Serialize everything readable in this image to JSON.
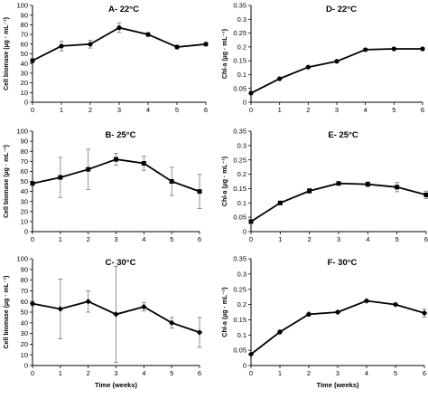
{
  "figure": {
    "x_title": "Time (weeks)"
  },
  "chart_data": [
    {
      "type": "line",
      "title": "A- 22°C",
      "ylabel": "Cell biomase (µg · mL⁻¹)",
      "x": [
        0,
        1,
        2,
        3,
        4,
        5,
        6
      ],
      "xlim": [
        0,
        6
      ],
      "ylim": [
        0,
        100
      ],
      "yticks": [
        "0",
        "10",
        "20",
        "30",
        "40",
        "50",
        "60",
        "70",
        "80",
        "90",
        "100"
      ],
      "xticks": [
        "0",
        "1",
        "2",
        "3",
        "4",
        "5",
        "6"
      ],
      "xlabel": "",
      "marker": "circle",
      "values": [
        43,
        58,
        60,
        77,
        70,
        57,
        60
      ],
      "error": [
        2,
        5,
        4,
        5,
        2,
        2,
        2
      ]
    },
    {
      "type": "line",
      "title": "D- 22°C",
      "ylabel": "Chl-a (µg · mL⁻¹)",
      "x": [
        0,
        1,
        2,
        3,
        4,
        5,
        6
      ],
      "xlim": [
        0,
        6
      ],
      "ylim": [
        0,
        0.35
      ],
      "yticks": [
        "0",
        "0.05",
        "0.1",
        "0.15",
        "0.2",
        "0.25",
        "0.3",
        "0.35"
      ],
      "xticks": [
        "0",
        "1",
        "2",
        "3",
        "4",
        "5",
        "6"
      ],
      "xlabel": "",
      "marker": "circle",
      "values": [
        0.033,
        0.085,
        0.127,
        0.148,
        0.19,
        0.193,
        0.193
      ],
      "error": [
        0.002,
        0.003,
        0.003,
        0.003,
        0.003,
        0.004,
        0.003
      ]
    },
    {
      "type": "line",
      "title": "B- 25°C",
      "ylabel": "Cell biomase (µg · mL⁻¹)",
      "x": [
        0,
        1,
        2,
        3,
        4,
        5,
        6
      ],
      "xlim": [
        0,
        6
      ],
      "ylim": [
        0,
        100
      ],
      "yticks": [
        "0",
        "10",
        "20",
        "30",
        "40",
        "50",
        "60",
        "70",
        "80",
        "90",
        "100"
      ],
      "xticks": [
        "0",
        "1",
        "2",
        "3",
        "4",
        "5",
        "6"
      ],
      "xlabel": "",
      "marker": "square",
      "values": [
        48,
        54,
        62,
        72,
        68,
        50,
        40
      ],
      "error": [
        0,
        20,
        20,
        6,
        7,
        14,
        17
      ]
    },
    {
      "type": "line",
      "title": "E- 25°C",
      "ylabel": "Chl-a (µg · mL⁻¹)",
      "x": [
        0,
        1,
        2,
        3,
        4,
        5,
        6
      ],
      "xlim": [
        0,
        6
      ],
      "ylim": [
        0,
        0.35
      ],
      "yticks": [
        "0",
        "0.05",
        "0.1",
        "0.15",
        "0.2",
        "0.25",
        "0.3",
        "0.35"
      ],
      "xticks": [
        "0",
        "1",
        "2",
        "3",
        "4",
        "5",
        "6"
      ],
      "xlabel": "",
      "marker": "square",
      "values": [
        0.035,
        0.1,
        0.142,
        0.168,
        0.165,
        0.155,
        0.128
      ],
      "error": [
        0.002,
        0.004,
        0.008,
        0.004,
        0.008,
        0.016,
        0.013
      ]
    },
    {
      "type": "line",
      "title": "C- 30°C",
      "ylabel": "Cell biomase (µg · mL⁻¹)",
      "x": [
        0,
        1,
        2,
        3,
        4,
        5,
        6
      ],
      "xlim": [
        0,
        6
      ],
      "ylim": [
        0,
        100
      ],
      "yticks": [
        "0",
        "10",
        "20",
        "30",
        "40",
        "50",
        "60",
        "70",
        "80",
        "90",
        "100"
      ],
      "xticks": [
        "0",
        "1",
        "2",
        "3",
        "4",
        "5",
        "6"
      ],
      "xlabel": "Time (weeks)",
      "marker": "diamond",
      "values": [
        58,
        53,
        60,
        48,
        55,
        40,
        31
      ],
      "error": [
        2,
        28,
        10,
        45,
        4,
        5,
        14
      ]
    },
    {
      "type": "line",
      "title": "F- 30°C",
      "ylabel": "Chl-a (µg · mL⁻¹)",
      "x": [
        0,
        1,
        2,
        3,
        4,
        5,
        6
      ],
      "xlim": [
        0,
        6
      ],
      "ylim": [
        0,
        0.35
      ],
      "yticks": [
        "0",
        "0.05",
        "0.1",
        "0.15",
        "0.2",
        "0.25",
        "0.3",
        "0.35"
      ],
      "xticks": [
        "0",
        "1",
        "2",
        "3",
        "4",
        "5",
        "6"
      ],
      "xlabel": "Time (weeks)",
      "marker": "diamond",
      "values": [
        0.037,
        0.11,
        0.168,
        0.175,
        0.212,
        0.2,
        0.172
      ],
      "error": [
        0.002,
        0.006,
        0.006,
        0.004,
        0.004,
        0.004,
        0.013
      ]
    }
  ]
}
